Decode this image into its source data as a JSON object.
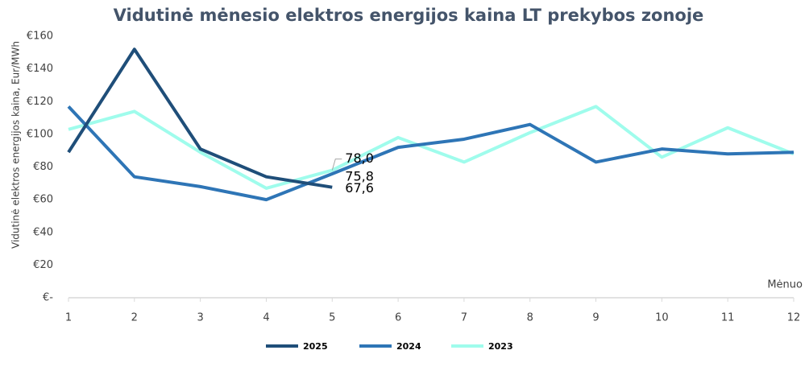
{
  "chart_data": {
    "type": "line",
    "title": "Vidutinė mėnesio elektros energijos kaina LT prekybos zonoje",
    "y_label": "Vidutinė elektros energijos kaina, Eur/MWh",
    "x_label": "Mėnuo",
    "categories": [
      "1",
      "2",
      "3",
      "4",
      "5",
      "6",
      "7",
      "8",
      "9",
      "10",
      "11",
      "12"
    ],
    "series": [
      {
        "name": "2025",
        "color": "#1f4e79",
        "values": [
          89,
          152,
          91,
          74,
          67.6,
          null,
          null,
          null,
          null,
          null,
          null,
          null
        ],
        "value_labels": [
          null,
          null,
          null,
          null,
          "67,6",
          null,
          null,
          null,
          null,
          null,
          null,
          null
        ]
      },
      {
        "name": "2024",
        "color": "#2e75b6",
        "values": [
          117,
          74,
          68,
          60,
          75.8,
          92,
          97,
          106,
          83,
          91,
          88,
          89
        ],
        "value_labels": [
          null,
          null,
          null,
          null,
          "75,8",
          null,
          null,
          null,
          null,
          null,
          null,
          null
        ]
      },
      {
        "name": "2023",
        "color": "#9ffcec",
        "values": [
          103,
          114,
          89,
          67,
          78.0,
          98,
          83,
          101,
          117,
          86,
          104,
          88
        ],
        "value_labels": [
          null,
          null,
          null,
          null,
          "78,0",
          null,
          null,
          null,
          null,
          null,
          null,
          null
        ]
      }
    ],
    "ylim": [
      0,
      160
    ],
    "yticks": [
      {
        "value": 0,
        "label": "€-"
      },
      {
        "value": 20,
        "label": "€20"
      },
      {
        "value": 40,
        "label": "€40"
      },
      {
        "value": 60,
        "label": "€60"
      },
      {
        "value": 80,
        "label": "€80"
      },
      {
        "value": 100,
        "label": "€100"
      },
      {
        "value": 120,
        "label": "€120"
      },
      {
        "value": 140,
        "label": "€140"
      },
      {
        "value": 160,
        "label": "€160"
      }
    ],
    "legend": "bottom"
  }
}
